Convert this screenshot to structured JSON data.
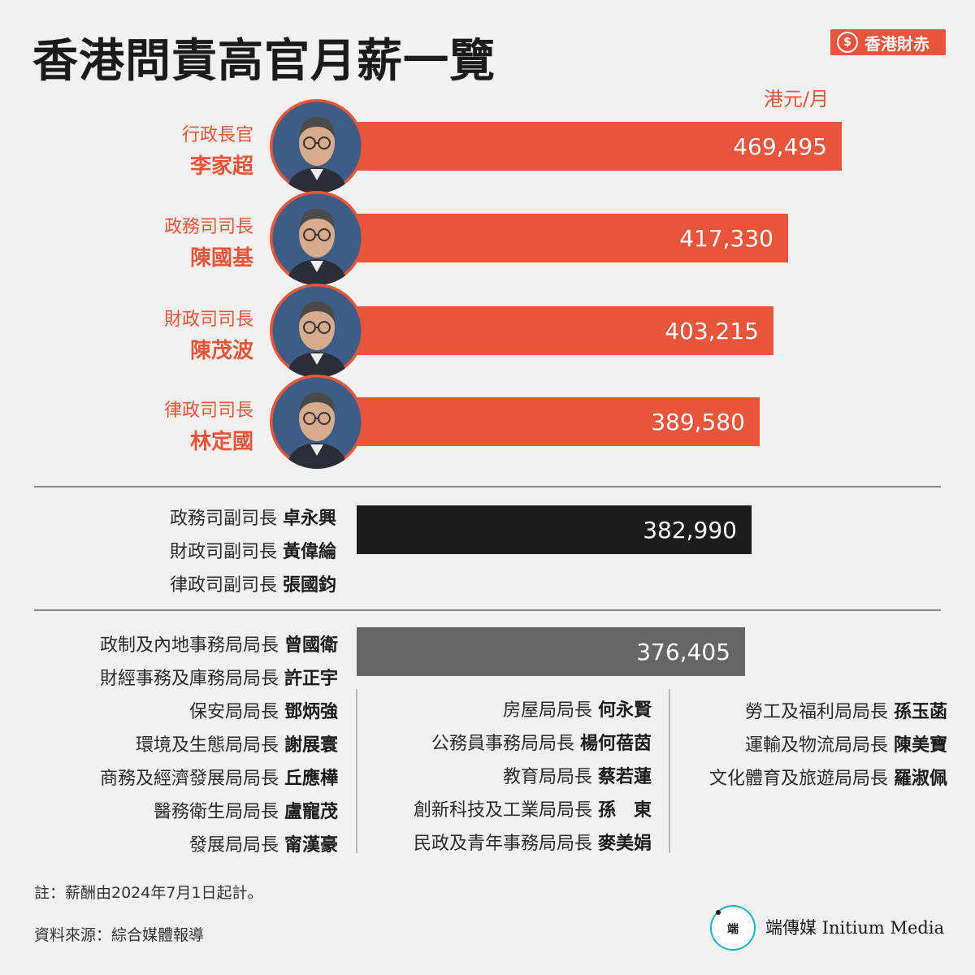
{
  "title": "香港問責高官月薪一覽",
  "badge": {
    "text": "香港財赤",
    "icon": "dollar-coin-icon",
    "symbol": "$"
  },
  "unit": "港元/月",
  "colors": {
    "accent": "#e7553a",
    "dark": "#1d1d1d",
    "grey": "#666666",
    "logo_ring": "#17b3c1"
  },
  "chart_data": {
    "type": "bar",
    "orientation": "horizontal",
    "unit": "港元/月",
    "bars": [
      {
        "role": "行政長官",
        "name": "李家超",
        "value": 469495,
        "label": "469,495",
        "color": "#e7553a"
      },
      {
        "role": "政務司司長",
        "name": "陳國基",
        "value": 417330,
        "label": "417,330",
        "color": "#e7553a"
      },
      {
        "role": "財政司司長",
        "name": "陳茂波",
        "value": 403215,
        "label": "403,215",
        "color": "#e7553a"
      },
      {
        "role": "律政司司長",
        "name": "林定國",
        "value": 389580,
        "label": "389,580",
        "color": "#e7553a"
      },
      {
        "role": "副司長",
        "value": 382990,
        "label": "382,990",
        "color": "#1d1d1d"
      },
      {
        "role": "局長",
        "value": 376405,
        "label": "376,405",
        "color": "#666666"
      }
    ],
    "grid": false
  },
  "deputies": [
    {
      "role": "政務司副司長",
      "name": "卓永興"
    },
    {
      "role": "財政司副司長",
      "name": "黃偉綸"
    },
    {
      "role": "律政司副司長",
      "name": "張國鈞"
    }
  ],
  "bureau_top": [
    {
      "role": "政制及內地事務局局長",
      "name": "曾國衛"
    },
    {
      "role": "財經事務及庫務局局長",
      "name": "許正宇"
    }
  ],
  "bureau_col1": [
    {
      "role": "保安局局長",
      "name": "鄧炳強"
    },
    {
      "role": "環境及生態局局長",
      "name": "謝展寰"
    },
    {
      "role": "商務及經濟發展局局長",
      "name": "丘應樺"
    },
    {
      "role": "醫務衛生局局長",
      "name": "盧寵茂"
    },
    {
      "role": "發展局局長",
      "name": "甯漢豪"
    }
  ],
  "bureau_col2": [
    {
      "role": "房屋局局長",
      "name": "何永賢"
    },
    {
      "role": "公務員事務局局長",
      "name": "楊何蓓茵"
    },
    {
      "role": "教育局局長",
      "name": "蔡若蓮"
    },
    {
      "role": "創新科技及工業局局長",
      "name": "孫　東"
    },
    {
      "role": "民政及青年事務局局長",
      "name": "麥美娟"
    }
  ],
  "bureau_col3": [
    {
      "role": "勞工及福利局局長",
      "name": "孫玉菡"
    },
    {
      "role": "運輸及物流局局長",
      "name": "陳美寶"
    },
    {
      "role": "文化體育及旅遊局局長",
      "name": "羅淑佩"
    }
  ],
  "note": "註：薪酬由2024年7月1日起計。",
  "source": "資料來源：綜合媒體報導",
  "logo": {
    "text": "端傳媒 Initium Media",
    "icon": "initium-logo-icon"
  }
}
